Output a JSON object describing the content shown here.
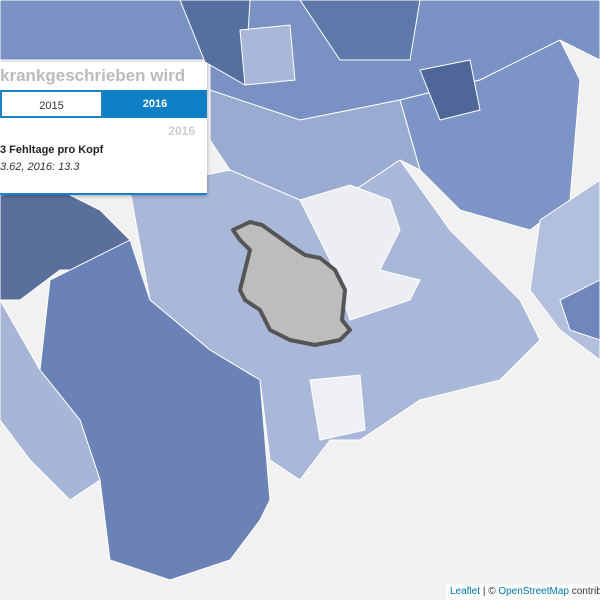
{
  "panel": {
    "title": "krankgeschrieben wird",
    "buttons": [
      "2015",
      "2016"
    ],
    "active_year": "2016",
    "heading": "3 Fehltage pro Kopf",
    "detail": "3.62, 2016: 13.3"
  },
  "attribution": {
    "leaflet": "Leaflet",
    "separator": "| ©",
    "osm": "OpenStreetMap",
    "suffix": "contributi"
  }
}
